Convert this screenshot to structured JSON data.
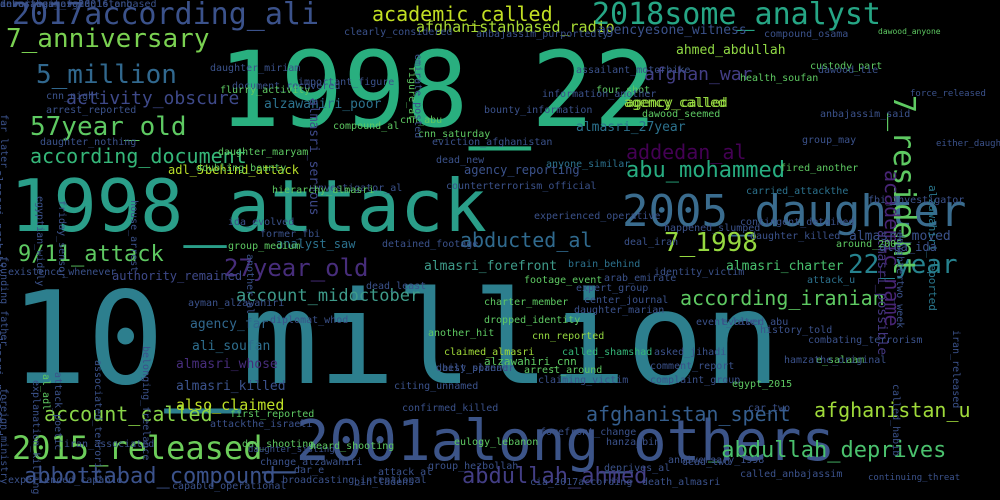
{
  "words": [
    {
      "text": "10_million",
      "color": "#2d7f8e"
    },
    {
      "text": "1998_22",
      "color": "#29af7f"
    },
    {
      "text": "1998_attack",
      "color": "#2a9e89"
    },
    {
      "text": "_2001along_others",
      "color": "#3c5488"
    },
    {
      "text": "2005_daughter",
      "color": "#3a6c8e"
    },
    {
      "text": "2017according_ali",
      "color": "#3b528b"
    },
    {
      "text": "2018some_analyst",
      "color": "#26a685"
    },
    {
      "text": "2015_released",
      "color": "#6ccd5a"
    },
    {
      "text": "abbottabad_compound",
      "color": "#3b528b"
    },
    {
      "text": "abdullah_ahmed",
      "color": "#433e85"
    },
    {
      "text": "_abdullah_deprives",
      "color": "#4ac16d"
    },
    {
      "text": "57year_old",
      "color": "#5ec962"
    },
    {
      "text": "7_anniversary",
      "color": "#7ad151"
    },
    {
      "text": "5_million",
      "color": "#31688e"
    },
    {
      "text": "abu_mohammed",
      "color": "#27ad81"
    },
    {
      "text": "27year_old",
      "color": "#472d7b"
    },
    {
      "text": "7_1998",
      "color": "#95d840"
    },
    {
      "text": "22_year",
      "color": "#26828e"
    },
    {
      "text": "9/11_attack",
      "color": "#5ec962"
    },
    {
      "text": "7_resident",
      "color": "#5ec962"
    },
    {
      "text": "academic_name",
      "color": "#482576"
    },
    {
      "text": "academic_called",
      "color": "#c2df23"
    },
    {
      "text": "according_document",
      "color": "#35b779"
    },
    {
      "text": "according_iranian",
      "color": "#5ec962"
    },
    {
      "text": "account_called",
      "color": "#89d548"
    },
    {
      "text": "account_midoctober",
      "color": "#3e9b8a"
    },
    {
      "text": "activity_obscure",
      "color": "#3e4989"
    },
    {
      "text": "afghan_war",
      "color": "#433e85"
    },
    {
      "text": "afghanistan_spent",
      "color": "#355e8d"
    },
    {
      "text": "afghanistan_u",
      "color": "#9fda3a"
    },
    {
      "text": "abducted_al",
      "color": "#306a8e"
    },
    {
      "text": "addedan_al",
      "color": "#440154"
    },
    {
      "text": "afghanistanbased_radio",
      "color": "#a8db34"
    },
    {
      "text": "ahmed_abdullah",
      "color": "#8fd744"
    },
    {
      "text": "agency_called",
      "color": "#95d840"
    },
    {
      "text": "agencyesone_witness",
      "color": "#3b528b"
    },
    {
      "text": "almasri_27year",
      "color": "#2c728e"
    },
    {
      "text": "alzawahiri_poor",
      "color": "#2c728e"
    },
    {
      "text": "almasri_serious",
      "color": "#3e4989"
    },
    {
      "text": "almasri_forefront",
      "color": "#3e9b8a"
    },
    {
      "text": "almasri_charter",
      "color": "#48c16e"
    },
    {
      "text": "almasri_moved",
      "color": "#3b528b"
    },
    {
      "text": "almasri_possible",
      "color": "#453781"
    },
    {
      "text": "alzawahiri_reported",
      "color": "#2a788e"
    },
    {
      "text": "almasri_probably",
      "color": "#3b528b"
    },
    {
      "text": "almasri_rejected",
      "color": "#3b528b"
    },
    {
      "text": "almasri_whose",
      "color": "#472d7b"
    },
    {
      "text": "almasri_killed",
      "color": "#3b528b"
    },
    {
      "text": "ali_soufan",
      "color": "#2e6e8e"
    },
    {
      "text": "agency_far",
      "color": "#31688e"
    },
    {
      "text": "also_claimed",
      "color": "#bddf26"
    },
    {
      "text": "alzawahiri_cnn",
      "color": "#5ec962"
    },
    {
      "text": "alqa_ida",
      "color": "#3b528b"
    },
    {
      "text": "adl_5",
      "color": "#b8de29"
    },
    {
      "text": "behind_attack",
      "color": "#b8de29"
    },
    {
      "text": "agency_reporting",
      "color": "#3b528b"
    },
    {
      "text": "anyone_similar",
      "color": "#2c728e"
    },
    {
      "text": "analyst_saw",
      "color": "#2c728e"
    },
    {
      "text": "authority_remained",
      "color": "#3e4989"
    },
    {
      "text": "brain_behind",
      "color": "#2c728e"
    },
    {
      "text": "attack_u",
      "color": "#2c728e"
    },
    {
      "text": "around_2005",
      "color": "#5ec962"
    },
    {
      "text": "carried_attackthe",
      "color": "#2c728e"
    },
    {
      "text": "ayman_alzawahiri",
      "color": "#3b528b"
    },
    {
      "text": "another_hit",
      "color": "#5ec962"
    },
    {
      "text": "claimed_almasri",
      "color": "#a0da39"
    },
    {
      "text": "cnn_reported",
      "color": "#95d840"
    },
    {
      "text": "best_planner",
      "color": "#3b528b"
    },
    {
      "text": "called_shamshad",
      "color": "#35b779"
    },
    {
      "text": "asked_jihadi",
      "color": "#3b528b"
    },
    {
      "text": "arrest_around",
      "color": "#5ec962"
    },
    {
      "text": "claiming_victim",
      "color": "#3b528b"
    },
    {
      "text": "complaint_group",
      "color": "#3b528b"
    },
    {
      "text": "comment_report",
      "color": "#3b528b"
    },
    {
      "text": "cnn_saturday",
      "color": "#5ec962"
    },
    {
      "text": "compound_al",
      "color": "#5ec962"
    },
    {
      "text": "agency_called",
      "color": "#95d840"
    },
    {
      "text": "car_two",
      "color": "#3b528b"
    },
    {
      "text": "anniversary_1998",
      "color": "#3b528b"
    },
    {
      "text": "attack_al",
      "color": "#3b528b"
    },
    {
      "text": "called_anbajassim",
      "color": "#3b528b"
    },
    {
      "text": "continuing_threat",
      "color": "#3b528b"
    },
    {
      "text": "broadcasting_intentional",
      "color": "#3b528b"
    },
    {
      "text": "cia_2017according",
      "color": "#3b528b"
    },
    {
      "text": "capable_operational",
      "color": "#3b528b"
    },
    {
      "text": "change_alzawahiri",
      "color": "#3b528b"
    },
    {
      "text": "bin_ladens",
      "color": "#3b528b"
    },
    {
      "text": "cnn_abu",
      "color": "#5ec962"
    },
    {
      "text": "bounty_information",
      "color": "#3b528b"
    },
    {
      "text": "dead_two",
      "color": "#3b528b"
    },
    {
      "text": "deprives_al",
      "color": "#3b528b"
    },
    {
      "text": "death_almasri",
      "color": "#3b528b"
    },
    {
      "text": "dawood_seemed",
      "color": "#5ec962"
    },
    {
      "text": "egypt_2015",
      "color": "#5ec962"
    },
    {
      "text": "e_salaam",
      "color": "#5ec962"
    },
    {
      "text": "history_told",
      "color": "#3b528b"
    },
    {
      "text": "custody_part",
      "color": "#5ec962"
    },
    {
      "text": "four_shot",
      "color": "#5ec962"
    },
    {
      "text": "dawood_anyone",
      "color": "#5ec962"
    },
    {
      "text": "compound_osama",
      "color": "#3b528b"
    },
    {
      "text": "clearly_considered",
      "color": "#3b528b"
    },
    {
      "text": "anbajassim_purportedly",
      "color": "#3b528b"
    },
    {
      "text": "daughter_miriam",
      "color": "#3b528b"
    },
    {
      "text": "cnn_night",
      "color": "#3b528b"
    },
    {
      "text": "arrest_reported",
      "color": "#3b528b"
    },
    {
      "text": "daughter_maryam",
      "color": "#5ec962"
    },
    {
      "text": "assailant_motorbike",
      "color": "#3b528b"
    },
    {
      "text": "group_may",
      "color": "#3b528b"
    },
    {
      "text": "fired_another",
      "color": "#5ec962"
    },
    {
      "text": "fbi_investigator",
      "color": "#3b528b"
    },
    {
      "text": "counterterrorism_official",
      "color": "#3b528b"
    },
    {
      "text": "daughter_killed",
      "color": "#3b528b"
    },
    {
      "text": "deal_iran",
      "color": "#3b528b"
    },
    {
      "text": "group_medium",
      "color": "#5ec962"
    },
    {
      "text": "investigator_al",
      "color": "#3b528b"
    },
    {
      "text": "expert_group",
      "color": "#3b528b"
    },
    {
      "text": "center_journal",
      "color": "#3b528b"
    },
    {
      "text": "daughter_marian",
      "color": "#3b528b"
    },
    {
      "text": "charter_member",
      "color": "#5ec962"
    },
    {
      "text": "dropped_identity",
      "color": "#5ec962"
    },
    {
      "text": "event_later",
      "color": "#3b528b"
    },
    {
      "text": "footage_event",
      "color": "#5ec962"
    },
    {
      "text": "diplomat_whod",
      "color": "#3b528b"
    },
    {
      "text": "detained_footage",
      "color": "#3b528b"
    },
    {
      "text": "former_fbi",
      "color": "#3b528b"
    },
    {
      "text": "dead_least",
      "color": "#3b528b"
    },
    {
      "text": "existence_whenever",
      "color": "#3b528b"
    },
    {
      "text": "daughter_nothing",
      "color": "#3b528b"
    },
    {
      "text": "dead_new",
      "color": "#3b528b"
    },
    {
      "text": "first_reported",
      "color": "#5ec962"
    },
    {
      "text": "eulogy_lebanon",
      "color": "#5ec962"
    },
    {
      "text": "group_hezbollah",
      "color": "#3b528b"
    },
    {
      "text": "day_shooting",
      "color": "#5ec962"
    },
    {
      "text": "daughter_sisting",
      "color": "#3b528b"
    },
    {
      "text": "heard_shooting",
      "color": "#5ec962"
    },
    {
      "text": "hanza_bin",
      "color": "#3b528b"
    },
    {
      "text": "citing_unnamed",
      "color": "#3b528b"
    },
    {
      "text": "confirmed_killed",
      "color": "#3b528b"
    },
    {
      "text": "hamzathe_original",
      "color": "#3b528b"
    },
    {
      "text": "evolved_abu",
      "color": "#3b528b"
    },
    {
      "text": "dawood_tie",
      "color": "#3b528b"
    },
    {
      "text": "health_soufan",
      "color": "#5ec962"
    },
    {
      "text": "dar_e",
      "color": "#3b528b"
    },
    {
      "text": "iran_associated",
      "color": "#3b528b"
    },
    {
      "text": "experienced_capable",
      "color": "#3b528b"
    },
    {
      "text": "force_released",
      "color": "#3b528b"
    },
    {
      "text": "either_daughter",
      "color": "#3b528b"
    },
    {
      "text": "anbajassim_said",
      "color": "#3b528b"
    },
    {
      "text": "contingent_detained",
      "color": "#3b528b"
    },
    {
      "text": "belonging_freelance",
      "color": "#3b528b"
    },
    {
      "text": "house_arrest",
      "color": "#3b528b"
    },
    {
      "text": "another_al",
      "color": "#3b528b"
    },
    {
      "text": "hierarchy_almasri",
      "color": "#5ec962"
    },
    {
      "text": "daily_spread",
      "color": "#3b528b"
    },
    {
      "text": "forefront_change",
      "color": "#3b528b"
    },
    {
      "text": "al_adl",
      "color": "#5ec962"
    },
    {
      "text": "attack_poetic",
      "color": "#3b528b"
    },
    {
      "text": "associated_terrorist",
      "color": "#3b528b"
    },
    {
      "text": "attackthe_israeli",
      "color": "#3b528b"
    },
    {
      "text": "combating_terrorism",
      "color": "#3b528b"
    },
    {
      "text": "document_recovered",
      "color": "#3b528b"
    },
    {
      "text": "far_later",
      "color": "#3b528b"
    },
    {
      "text": "egyptian_widely",
      "color": "#3b528b"
    },
    {
      "text": "friday_sensor",
      "color": "#3b528b"
    },
    {
      "text": "founding_father",
      "color": "#3b528b"
    },
    {
      "text": "foreign_ministry",
      "color": "#3b528b"
    },
    {
      "text": "explanation_killing",
      "color": "#3b528b"
    },
    {
      "text": "experienced_operative",
      "color": "#3b528b"
    },
    {
      "text": "identity_victim",
      "color": "#3b528b"
    },
    {
      "text": "happened_slumped",
      "color": "#3b528b"
    },
    {
      "text": "arab_emirate",
      "color": "#3b528b"
    },
    {
      "text": "figure_al",
      "color": "#5ec962"
    },
    {
      "text": "emirate_posted",
      "color": "#3b528b"
    },
    {
      "text": "eviction_afghanistan",
      "color": "#3b528b"
    },
    {
      "text": "important_figure",
      "color": "#3b528b"
    },
    {
      "text": "flurry_activity",
      "color": "#5ec962"
    },
    {
      "text": "information_another",
      "color": "#3b528b"
    },
    {
      "text": "ida_evolved",
      "color": "#3b528b"
    },
    {
      "text": "doubling_bounty",
      "color": "#5ec962"
    },
    {
      "text": "called_habib",
      "color": "#3b528b"
    },
    {
      "text": "daughtertwo_week",
      "color": "#3b528b"
    },
    {
      "text": "iran_released",
      "color": "#3b528b"
    },
    {
      "text": "describes_afghanistanbased",
      "color": "#3b528b"
    },
    {
      "text": "investigator_20016long",
      "color": "#3b528b"
    },
    {
      "text": "anbajassim_said",
      "color": "#3b528b"
    }
  ]
}
